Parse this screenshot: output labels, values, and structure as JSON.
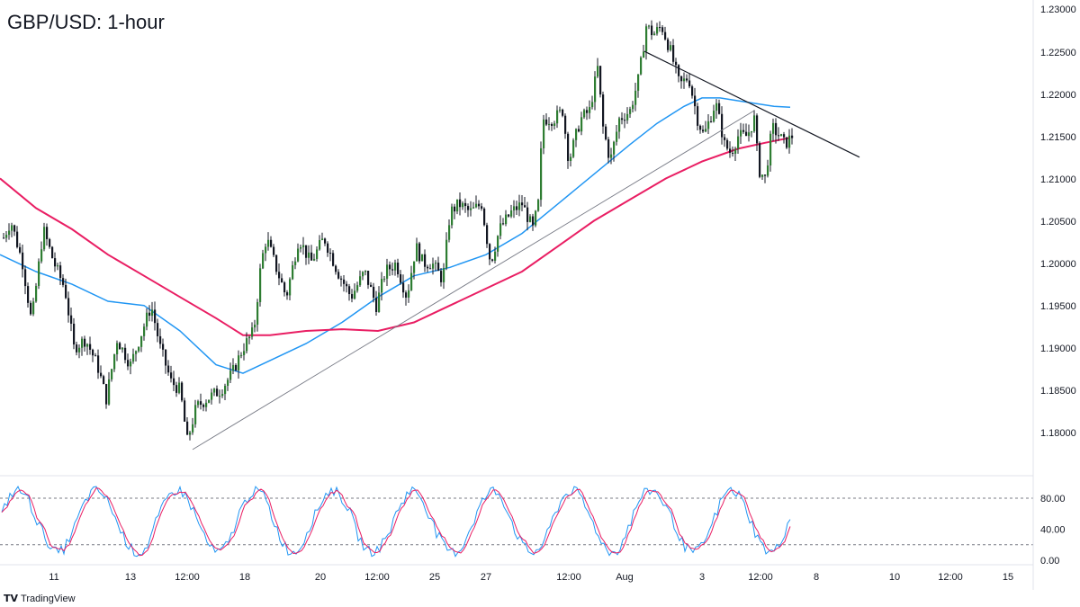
{
  "chart_data": [
    {
      "type": "candlestick",
      "title": "GBP/USD: 1-hour",
      "y_ticks": [
        "1.23000",
        "1.22500",
        "1.22000",
        "1.21500",
        "1.21000",
        "1.20500",
        "1.20000",
        "1.19500",
        "1.19000",
        "1.18500",
        "1.18000"
      ],
      "x_ticks": [
        "11",
        "13",
        "12:00",
        "18",
        "20",
        "12:00",
        "25",
        "27",
        "12:00",
        "Aug",
        "3",
        "12:00",
        "8",
        "10",
        "12:00",
        "15"
      ],
      "ylim": [
        1.1755,
        1.2305
      ],
      "price_path": [
        [
          0,
          1.202
        ],
        [
          12,
          1.205
        ],
        [
          25,
          1.2
        ],
        [
          35,
          1.193
        ],
        [
          48,
          1.204
        ],
        [
          60,
          1.2
        ],
        [
          72,
          1.197
        ],
        [
          82,
          1.19
        ],
        [
          95,
          1.191
        ],
        [
          108,
          1.188
        ],
        [
          118,
          1.184
        ],
        [
          130,
          1.191
        ],
        [
          145,
          1.188
        ],
        [
          158,
          1.192
        ],
        [
          168,
          1.195
        ],
        [
          178,
          1.19
        ],
        [
          190,
          1.186
        ],
        [
          200,
          1.185
        ],
        [
          208,
          1.179
        ],
        [
          218,
          1.183
        ],
        [
          230,
          1.184
        ],
        [
          245,
          1.185
        ],
        [
          258,
          1.187
        ],
        [
          270,
          1.19
        ],
        [
          282,
          1.192
        ],
        [
          290,
          1.2
        ],
        [
          296,
          1.203
        ],
        [
          305,
          1.2
        ],
        [
          318,
          1.196
        ],
        [
          332,
          1.203
        ],
        [
          345,
          1.2
        ],
        [
          360,
          1.203
        ],
        [
          375,
          1.199
        ],
        [
          390,
          1.196
        ],
        [
          405,
          1.199
        ],
        [
          418,
          1.195
        ],
        [
          428,
          1.199
        ],
        [
          440,
          1.2
        ],
        [
          452,
          1.196
        ],
        [
          462,
          1.202
        ],
        [
          470,
          1.2
        ],
        [
          480,
          1.2
        ],
        [
          492,
          1.198
        ],
        [
          500,
          1.206
        ],
        [
          510,
          1.207
        ],
        [
          522,
          1.206
        ],
        [
          535,
          1.207
        ],
        [
          545,
          1.2
        ],
        [
          555,
          1.204
        ],
        [
          568,
          1.206
        ],
        [
          580,
          1.207
        ],
        [
          592,
          1.204
        ],
        [
          598,
          1.207
        ],
        [
          603,
          1.217
        ],
        [
          615,
          1.217
        ],
        [
          625,
          1.218
        ],
        [
          632,
          1.212
        ],
        [
          645,
          1.217
        ],
        [
          655,
          1.218
        ],
        [
          664,
          1.223
        ],
        [
          670,
          1.216
        ],
        [
          678,
          1.212
        ],
        [
          688,
          1.217
        ],
        [
          700,
          1.218
        ],
        [
          710,
          1.222
        ],
        [
          718,
          1.228
        ],
        [
          726,
          1.227
        ],
        [
          735,
          1.228
        ],
        [
          745,
          1.225
        ],
        [
          755,
          1.221
        ],
        [
          765,
          1.222
        ],
        [
          775,
          1.217
        ],
        [
          782,
          1.215
        ],
        [
          795,
          1.219
        ],
        [
          805,
          1.214
        ],
        [
          812,
          1.213
        ],
        [
          820,
          1.215
        ],
        [
          830,
          1.215
        ],
        [
          838,
          1.217
        ],
        [
          843,
          1.211
        ],
        [
          850,
          1.21
        ],
        [
          858,
          1.216
        ],
        [
          866,
          1.215
        ],
        [
          872,
          1.214
        ],
        [
          880,
          1.215
        ]
      ],
      "series": [
        {
          "name": "",
          "values": [
            [
              0,
              1.201
            ],
            [
              40,
              1.199
            ],
            [
              80,
              1.1975
            ],
            [
              120,
              1.1955
            ],
            [
              160,
              1.195
            ],
            [
              200,
              1.192
            ],
            [
              240,
              1.188
            ],
            [
              270,
              1.187
            ],
            [
              300,
              1.1885
            ],
            [
              340,
              1.1905
            ],
            [
              380,
              1.193
            ],
            [
              420,
              1.196
            ],
            [
              460,
              1.1985
            ],
            [
              500,
              1.1995
            ],
            [
              540,
              1.201
            ],
            [
              580,
              1.2035
            ],
            [
              620,
              1.207
            ],
            [
              660,
              1.2105
            ],
            [
              700,
              1.214
            ],
            [
              730,
              1.2165
            ],
            [
              760,
              1.2185
            ],
            [
              780,
              1.2195
            ],
            [
              800,
              1.2195
            ],
            [
              830,
              1.219
            ],
            [
              860,
              1.2185
            ],
            [
              878,
              1.2184
            ]
          ]
        },
        {
          "name": "",
          "values": [
            [
              0,
              1.21
            ],
            [
              40,
              1.2065
            ],
            [
              80,
              1.204
            ],
            [
              120,
              1.201
            ],
            [
              160,
              1.1985
            ],
            [
              200,
              1.196
            ],
            [
              240,
              1.1935
            ],
            [
              270,
              1.1915
            ],
            [
              300,
              1.1915
            ],
            [
              340,
              1.192
            ],
            [
              380,
              1.1922
            ],
            [
              420,
              1.192
            ],
            [
              460,
              1.193
            ],
            [
              500,
              1.195
            ],
            [
              540,
              1.197
            ],
            [
              580,
              1.199
            ],
            [
              620,
              1.202
            ],
            [
              660,
              1.205
            ],
            [
              700,
              1.2075
            ],
            [
              740,
              1.21
            ],
            [
              780,
              1.212
            ],
            [
              820,
              1.2135
            ],
            [
              850,
              1.2142
            ],
            [
              878,
              1.2148
            ]
          ]
        }
      ],
      "trendlines": [
        {
          "from": [
            214,
            1.178
          ],
          "to": [
            838,
            1.218
          ]
        },
        {
          "from": [
            716,
            1.225
          ],
          "to": [
            955,
            1.2125
          ]
        }
      ]
    },
    {
      "type": "line",
      "indicator": "stochastic",
      "y_ticks": [
        "80.00",
        "40.00",
        "0.00"
      ],
      "levels": [
        80,
        20
      ],
      "ylim": [
        -8,
        100
      ]
    }
  ],
  "branding": {
    "logo": "TV",
    "name": "TradingView"
  }
}
